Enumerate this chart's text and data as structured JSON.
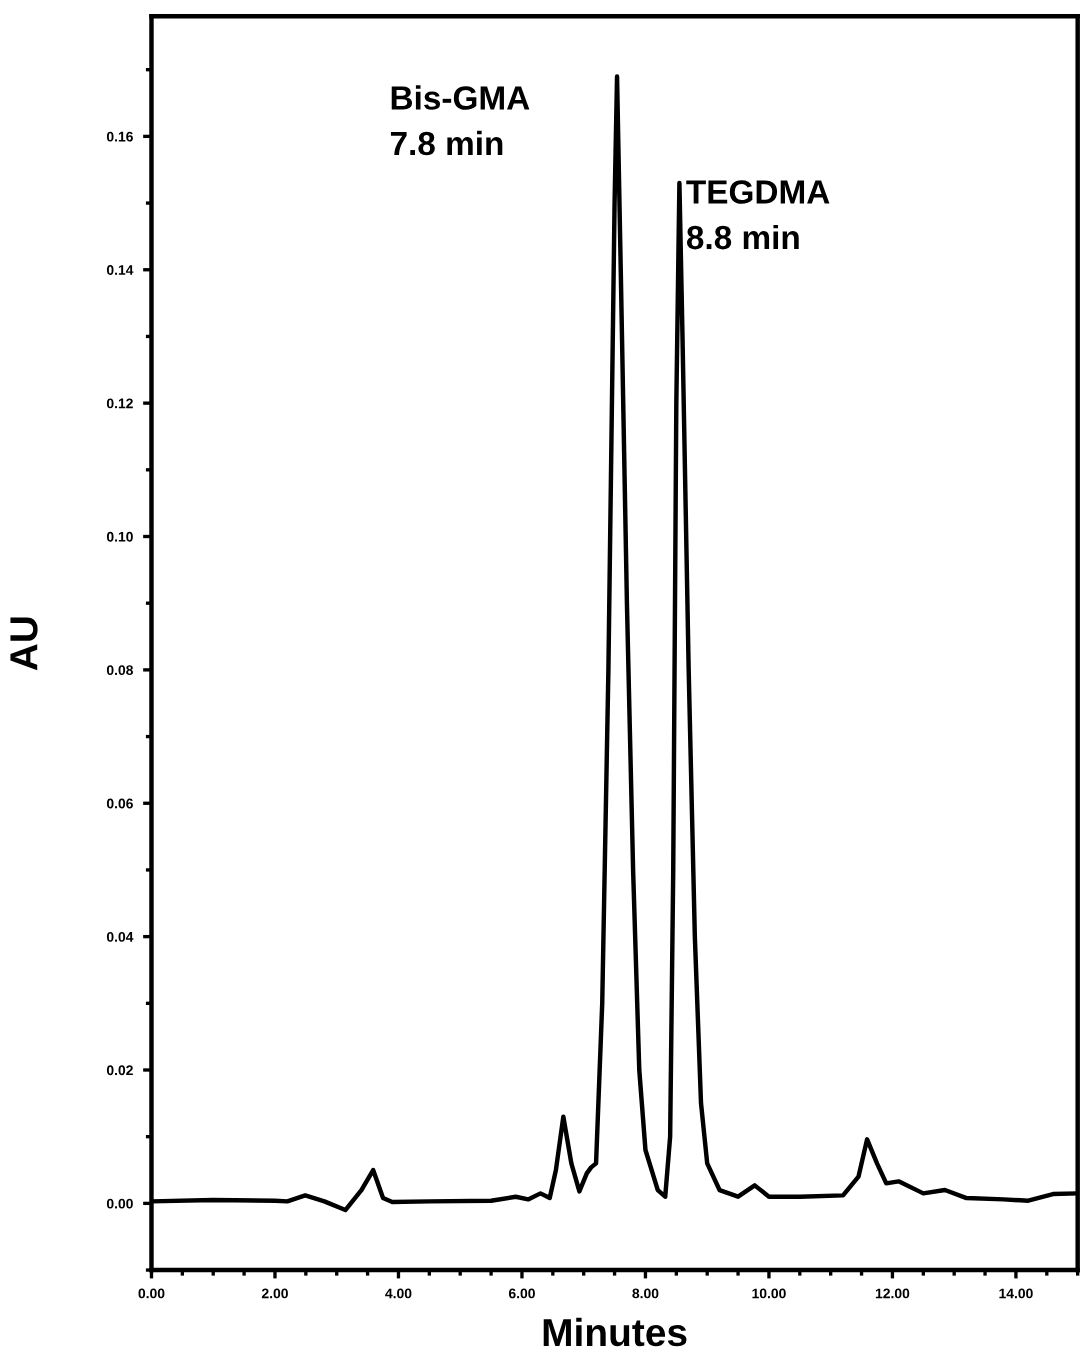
{
  "chart_data": {
    "type": "line",
    "xlabel": "Minutes",
    "ylabel": "AU",
    "annotations": [
      "Bis-GMA\n7.8 min",
      "TEGDMA\n8.8 min"
    ],
    "series": [
      {
        "color": "#000000",
        "x": [
          0,
          1.0,
          2.0,
          2.2,
          2.49,
          2.8,
          3.14,
          3.4,
          3.59,
          3.75,
          3.9,
          4.5,
          5.5,
          5.9,
          6.1,
          6.3,
          6.45,
          6.55,
          6.67,
          6.8,
          6.93,
          7.05,
          7.12,
          7.2,
          7.3,
          7.4,
          7.5,
          7.54,
          7.6,
          7.7,
          7.8,
          7.9,
          8.0,
          8.2,
          8.32,
          8.4,
          8.45,
          8.5,
          8.55,
          8.6,
          8.7,
          8.8,
          8.9,
          9.0,
          9.2,
          9.5,
          9.77,
          10.0,
          10.5,
          11.2,
          11.45,
          11.59,
          11.75,
          11.9,
          12.1,
          12.5,
          12.85,
          13.2,
          13.8,
          14.2,
          14.6,
          15.0
        ],
        "values": [
          0.0003,
          0.0005,
          0.0004,
          0.0003,
          0.0012,
          0.0003,
          -0.001,
          0.002,
          0.005,
          0.0008,
          0.0002,
          0.0003,
          0.0004,
          0.001,
          0.0006,
          0.0015,
          0.0008,
          0.005,
          0.013,
          0.006,
          0.0018,
          0.0045,
          0.0054,
          0.006,
          0.03,
          0.08,
          0.15,
          0.169,
          0.14,
          0.09,
          0.05,
          0.02,
          0.008,
          0.002,
          0.001,
          0.01,
          0.05,
          0.12,
          0.153,
          0.13,
          0.08,
          0.04,
          0.015,
          0.006,
          0.002,
          0.001,
          0.0027,
          0.001,
          0.001,
          0.0012,
          0.004,
          0.0096,
          0.006,
          0.003,
          0.0033,
          0.0015,
          0.002,
          0.0008,
          0.0006,
          0.0004,
          0.0014,
          0.0015
        ]
      }
    ],
    "xlim": [
      0,
      15
    ],
    "ylim": [
      -0.01,
      0.178
    ],
    "xticks": [
      {
        "value": 0,
        "label": "0.00"
      },
      {
        "value": 2,
        "label": "2.00"
      },
      {
        "value": 4,
        "label": "4.00"
      },
      {
        "value": 6,
        "label": "6.00"
      },
      {
        "value": 8,
        "label": "8.00"
      },
      {
        "value": 10,
        "label": "10.00"
      },
      {
        "value": 12,
        "label": "12.00"
      },
      {
        "value": 14,
        "label": "14.00"
      }
    ],
    "yticks": [
      {
        "value": 0,
        "label": "0.00"
      },
      {
        "value": 0.02,
        "label": "0.02"
      },
      {
        "value": 0.04,
        "label": "0.04"
      },
      {
        "value": 0.06,
        "label": "0.06"
      },
      {
        "value": 0.08,
        "label": "0.08"
      },
      {
        "value": 0.1,
        "label": "0.10"
      },
      {
        "value": 0.12,
        "label": "0.12"
      },
      {
        "value": 0.14,
        "label": "0.14"
      },
      {
        "value": 0.16,
        "label": "0.16"
      }
    ],
    "grid": false,
    "legend": false,
    "marker": "none",
    "line_style": "solid"
  }
}
